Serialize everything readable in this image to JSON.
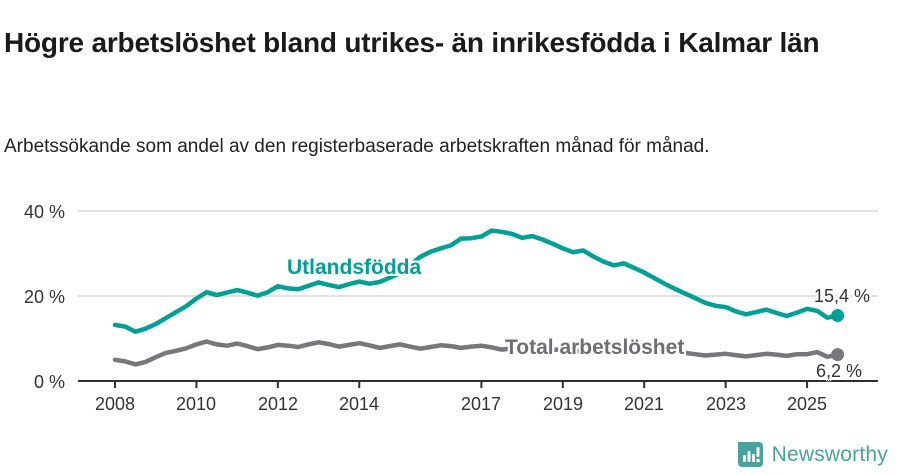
{
  "title": "Högre arbetslöshet bland utrikes- än inrikesfödda i Kalmar län",
  "subtitle": "Arbetssökande som andel av den registerbaserade arbetskraften månad för månad.",
  "brand": {
    "name": "Newsworthy",
    "logo_icon": "bar-chart-speech-bubble-icon"
  },
  "colors": {
    "foreign_born_line": "#00a096",
    "total_line": "#77777b",
    "gray_label": "#6e6e72",
    "gridline": "#d9d9d9",
    "axis": "#2e2e2e",
    "tick_text": "#333333",
    "background": "#ffffff"
  },
  "chart_data": {
    "type": "line",
    "title": "Högre arbetslöshet bland utrikes- än inrikesfödda i Kalmar län",
    "subtitle": "Arbetssökande som andel av den registerbaserade arbetskraften månad för månad.",
    "unit": "%",
    "x_start_year": 2008.0,
    "x_step_years": 0.25,
    "x_end_year": 2025.75,
    "ylim": [
      0,
      42
    ],
    "grid": "horizontal",
    "legend": "inline-labels",
    "yticks": [
      {
        "label": "0 %",
        "value": 0
      },
      {
        "label": "20 %",
        "value": 20
      },
      {
        "label": "40 %",
        "value": 40
      }
    ],
    "xticks": [
      "2008",
      "2010",
      "2012",
      "2014",
      "2017",
      "2019",
      "2021",
      "2023",
      "2025"
    ],
    "xtick_years": [
      2008,
      2010,
      2012,
      2014,
      2017,
      2019,
      2021,
      2023,
      2025
    ],
    "series": [
      {
        "name": "Utlandsfödda",
        "color": "#00a096",
        "end_value": 15.4,
        "end_label": "15,4 %",
        "values": [
          13.2,
          12.8,
          11.6,
          12.3,
          13.4,
          14.8,
          16.2,
          17.6,
          19.4,
          20.9,
          20.2,
          20.8,
          21.4,
          20.8,
          20.1,
          20.9,
          22.3,
          21.8,
          21.6,
          22.4,
          23.2,
          22.6,
          22.1,
          22.8,
          23.4,
          22.9,
          23.3,
          24.3,
          25.4,
          27.3,
          29.2,
          30.4,
          31.2,
          31.9,
          33.5,
          33.6,
          34.0,
          35.4,
          35.1,
          34.6,
          33.7,
          34.1,
          33.3,
          32.3,
          31.2,
          30.3,
          30.7,
          29.3,
          28.1,
          27.2,
          27.7,
          26.6,
          25.5,
          24.2,
          22.9,
          21.7,
          20.6,
          19.5,
          18.4,
          17.7,
          17.4,
          16.4,
          15.7,
          16.2,
          16.8,
          16.0,
          15.3,
          16.1,
          17.0,
          16.5,
          14.9,
          15.4
        ]
      },
      {
        "name": "Total arbetslöshet",
        "color": "#77777b",
        "end_value": 6.2,
        "end_label": "6,2 %",
        "values": [
          5.0,
          4.6,
          3.9,
          4.5,
          5.6,
          6.6,
          7.1,
          7.7,
          8.6,
          9.3,
          8.6,
          8.3,
          8.8,
          8.2,
          7.5,
          7.9,
          8.5,
          8.3,
          8.0,
          8.6,
          9.1,
          8.7,
          8.1,
          8.5,
          8.9,
          8.4,
          7.8,
          8.2,
          8.6,
          8.1,
          7.6,
          8.0,
          8.4,
          8.2,
          7.8,
          8.1,
          8.3,
          7.9,
          7.4,
          7.7,
          7.9,
          7.5,
          7.0,
          7.3,
          7.5,
          7.2,
          6.9,
          7.2,
          7.6,
          8.6,
          8.9,
          8.5,
          8.3,
          7.8,
          7.2,
          6.8,
          6.6,
          6.3,
          6.0,
          6.2,
          6.4,
          6.1,
          5.8,
          6.1,
          6.4,
          6.2,
          5.9,
          6.3,
          6.3,
          6.8,
          5.7,
          6.2
        ]
      }
    ]
  }
}
